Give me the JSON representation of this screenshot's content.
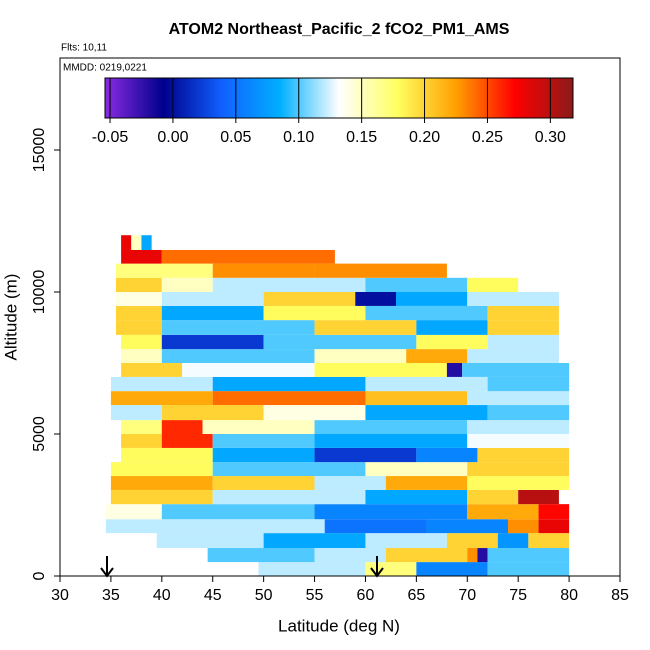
{
  "chart_data": {
    "type": "heatmap",
    "title": "ATOM2 Northeast_Pacific_2 fCO2_PM1_AMS",
    "notes": [
      "Flts: 10,11",
      "MMDD: 0219,0221"
    ],
    "xlabel": "Latitude (deg N)",
    "ylabel": "Altitude (m)",
    "xlim": [
      30,
      85
    ],
    "xticks": [
      30,
      35,
      40,
      45,
      50,
      55,
      60,
      65,
      70,
      75,
      80,
      85
    ],
    "ylim": [
      0,
      18240
    ],
    "yticks": [
      0,
      5000,
      10000,
      15000
    ],
    "colorbar": {
      "lim": [
        -0.054,
        0.318
      ],
      "ticks": [
        -0.05,
        {
          "value": 0,
          "label": "0.00"
        },
        0.05,
        {
          "value": 0.1,
          "label": "0.10"
        },
        0.15,
        {
          "value": 0.2,
          "label": "0.20"
        },
        0.25,
        {
          "value": 0.3,
          "label": "0.30"
        }
      ],
      "colors": [
        "#8a2be2",
        "#00008b",
        "#1060ff",
        "#00b0ff",
        "#ffffff",
        "#ffff60",
        "#ffa000",
        "#ff0000",
        "#8b1a1a"
      ]
    },
    "rows": [
      {
        "alt": [
          0,
          490
        ],
        "lat": [
          49.5,
          60,
          65,
          72,
          80
        ],
        "values": [
          0.12,
          0.17,
          0.06,
          0.1
        ]
      },
      {
        "alt": [
          490,
          985
        ],
        "lat": [
          44.5,
          55,
          62,
          70,
          71,
          72,
          80
        ],
        "values": [
          0.1,
          0.12,
          0.2,
          0.23,
          -0.02,
          0.1
        ]
      },
      {
        "alt": [
          985,
          1510
        ],
        "lat": [
          39.5,
          50,
          60,
          68,
          73,
          76,
          80
        ],
        "values": [
          0.12,
          0.08,
          0.12,
          0.2,
          0.07,
          0.2
        ]
      },
      {
        "alt": [
          1510,
          2000
        ],
        "lat": [
          34.5,
          56,
          66,
          74,
          77,
          80
        ],
        "values": [
          0.12,
          0.05,
          0.06,
          0.23,
          0.28
        ]
      },
      {
        "alt": [
          2000,
          2530
        ],
        "lat": [
          34.5,
          40,
          55,
          70,
          77,
          80
        ],
        "values": [
          0.14,
          0.1,
          0.06,
          0.22,
          0.27
        ]
      },
      {
        "alt": [
          2530,
          3030
        ],
        "lat": [
          35,
          45,
          60,
          70,
          75,
          79
        ],
        "values": [
          0.2,
          0.12,
          0.08,
          0.2,
          0.3
        ]
      },
      {
        "alt": [
          3030,
          3520
        ],
        "lat": [
          35,
          45,
          55,
          62,
          70,
          80
        ],
        "values": [
          0.22,
          0.2,
          0.12,
          0.22,
          0.18
        ]
      },
      {
        "alt": [
          3520,
          4010
        ],
        "lat": [
          35,
          45,
          60,
          70,
          80
        ],
        "values": [
          0.18,
          0.1,
          0.15,
          0.2
        ]
      },
      {
        "alt": [
          4010,
          4510
        ],
        "lat": [
          36,
          45,
          55,
          65,
          71,
          80
        ],
        "values": [
          0.18,
          0.08,
          0.02,
          0.06,
          0.2
        ]
      },
      {
        "alt": [
          4510,
          5000
        ],
        "lat": [
          36,
          40,
          45,
          55,
          70,
          80
        ],
        "values": [
          0.2,
          0.26,
          0.1,
          0.08,
          0.13
        ]
      },
      {
        "alt": [
          5000,
          5490
        ],
        "lat": [
          36,
          40,
          44,
          55,
          70,
          80
        ],
        "values": [
          0.17,
          0.26,
          0.15,
          0.1,
          0.12
        ]
      },
      {
        "alt": [
          5490,
          6020
        ],
        "lat": [
          35,
          40,
          50,
          60,
          72,
          80
        ],
        "values": [
          0.12,
          0.2,
          0.14,
          0.08,
          0.1
        ]
      },
      {
        "alt": [
          6020,
          6510
        ],
        "lat": [
          35,
          45,
          60,
          70,
          80
        ],
        "values": [
          0.22,
          0.24,
          0.21,
          0.12
        ]
      },
      {
        "alt": [
          6510,
          7010
        ],
        "lat": [
          35,
          45,
          60,
          72,
          80
        ],
        "values": [
          0.12,
          0.08,
          0.12,
          0.1
        ]
      },
      {
        "alt": [
          7010,
          7500
        ],
        "lat": [
          36,
          42,
          55,
          68,
          69.5,
          80
        ],
        "values": [
          0.2,
          0.13,
          0.18,
          -0.02,
          0.1
        ]
      },
      {
        "alt": [
          7500,
          7990
        ],
        "lat": [
          36,
          40,
          55,
          64,
          70,
          79
        ],
        "values": [
          0.15,
          0.1,
          0.15,
          0.22,
          0.12
        ]
      },
      {
        "alt": [
          7990,
          8490
        ],
        "lat": [
          36,
          40,
          50,
          65,
          72,
          79
        ],
        "values": [
          0.18,
          0.02,
          0.1,
          0.18,
          0.12
        ]
      },
      {
        "alt": [
          8490,
          9010
        ],
        "lat": [
          35.5,
          40,
          55,
          65,
          72,
          79
        ],
        "values": [
          0.2,
          0.1,
          0.2,
          0.08,
          0.2
        ]
      },
      {
        "alt": [
          9010,
          9510
        ],
        "lat": [
          35.5,
          40,
          50,
          60,
          72,
          79
        ],
        "values": [
          0.2,
          0.08,
          0.18,
          0.1,
          0.2
        ]
      },
      {
        "alt": [
          9510,
          10000
        ],
        "lat": [
          35.5,
          40,
          50,
          59,
          63,
          70,
          79
        ],
        "values": [
          0.14,
          0.12,
          0.2,
          0.0,
          0.08,
          0.12
        ]
      },
      {
        "alt": [
          10000,
          10500
        ],
        "lat": [
          35.5,
          40,
          45,
          60,
          70,
          75
        ],
        "values": [
          0.2,
          0.15,
          0.12,
          0.1,
          0.18
        ]
      },
      {
        "alt": [
          10500,
          11000
        ],
        "lat": [
          35.5,
          45,
          55,
          68
        ],
        "values": [
          0.17,
          0.23,
          0.23
        ]
      },
      {
        "alt": [
          11000,
          11480
        ],
        "lat": [
          36,
          40,
          57
        ],
        "values": [
          0.28,
          0.24
        ]
      },
      {
        "alt": [
          11480,
          12000
        ],
        "lat": [
          36,
          37,
          38,
          39
        ],
        "values": [
          0.28,
          0.15,
          0.08
        ]
      }
    ]
  }
}
